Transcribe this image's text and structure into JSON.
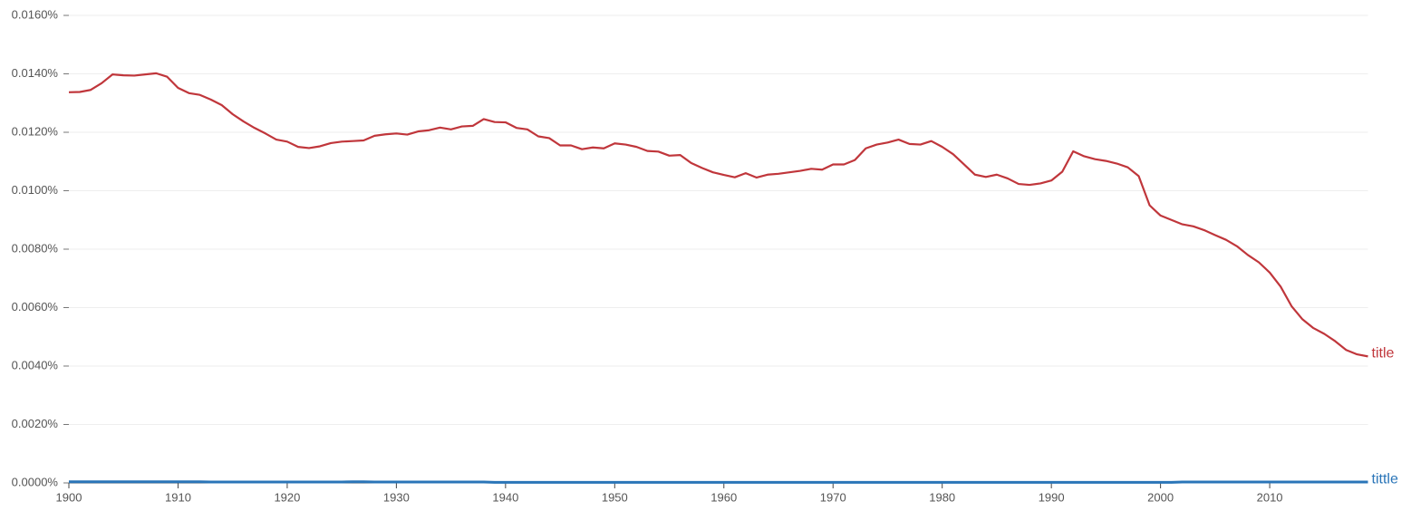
{
  "chart_data": {
    "type": "line",
    "x": [
      1900,
      1901,
      1902,
      1903,
      1904,
      1905,
      1906,
      1907,
      1908,
      1909,
      1910,
      1911,
      1912,
      1913,
      1914,
      1915,
      1916,
      1917,
      1918,
      1919,
      1920,
      1921,
      1922,
      1923,
      1924,
      1925,
      1926,
      1927,
      1928,
      1929,
      1930,
      1931,
      1932,
      1933,
      1934,
      1935,
      1936,
      1937,
      1938,
      1939,
      1940,
      1941,
      1942,
      1943,
      1944,
      1945,
      1946,
      1947,
      1948,
      1949,
      1950,
      1951,
      1952,
      1953,
      1954,
      1955,
      1956,
      1957,
      1958,
      1959,
      1960,
      1961,
      1962,
      1963,
      1964,
      1965,
      1966,
      1967,
      1968,
      1969,
      1970,
      1971,
      1972,
      1973,
      1974,
      1975,
      1976,
      1977,
      1978,
      1979,
      1980,
      1981,
      1982,
      1983,
      1984,
      1985,
      1986,
      1987,
      1988,
      1989,
      1990,
      1991,
      1992,
      1993,
      1994,
      1995,
      1996,
      1997,
      1998,
      1999,
      2000,
      2001,
      2002,
      2003,
      2004,
      2005,
      2006,
      2007,
      2008,
      2009,
      2010,
      2011,
      2012,
      2013,
      2014,
      2015,
      2016,
      2017,
      2018,
      2019
    ],
    "series": [
      {
        "name": "title",
        "color": "#c0363b",
        "values": [
          0.01337,
          0.01338,
          0.01345,
          0.01368,
          0.01398,
          0.01395,
          0.01394,
          0.01398,
          0.01402,
          0.0139,
          0.01352,
          0.01334,
          0.01328,
          0.01312,
          0.01293,
          0.01262,
          0.01237,
          0.01215,
          0.01196,
          0.01175,
          0.01168,
          0.0115,
          0.01146,
          0.01152,
          0.01163,
          0.01168,
          0.0117,
          0.01172,
          0.01188,
          0.01193,
          0.01196,
          0.01192,
          0.01203,
          0.01207,
          0.01216,
          0.0121,
          0.0122,
          0.01222,
          0.01245,
          0.01235,
          0.01234,
          0.01215,
          0.0121,
          0.01186,
          0.0118,
          0.01155,
          0.01155,
          0.01142,
          0.01148,
          0.01145,
          0.01162,
          0.01158,
          0.0115,
          0.01136,
          0.01134,
          0.0112,
          0.01122,
          0.01095,
          0.01078,
          0.01063,
          0.01054,
          0.01046,
          0.0106,
          0.01045,
          0.01055,
          0.01058,
          0.01063,
          0.01068,
          0.01075,
          0.01072,
          0.0109,
          0.0109,
          0.01105,
          0.01145,
          0.01158,
          0.01165,
          0.01175,
          0.0116,
          0.01158,
          0.0117,
          0.0115,
          0.01125,
          0.0109,
          0.01055,
          0.01047,
          0.01055,
          0.01042,
          0.01023,
          0.0102,
          0.01025,
          0.01035,
          0.01065,
          0.01135,
          0.01118,
          0.01108,
          0.01102,
          0.01093,
          0.0108,
          0.0105,
          0.0095,
          0.00915,
          0.009,
          0.00885,
          0.00878,
          0.00865,
          0.00848,
          0.00832,
          0.0081,
          0.0078,
          0.00755,
          0.0072,
          0.00672,
          0.00605,
          0.0056,
          0.0053,
          0.0051,
          0.00485,
          0.00455,
          0.0044,
          0.00433
        ]
      },
      {
        "name": "tittle",
        "color": "#2a75b8",
        "values": [
          4e-05,
          4e-05,
          4e-05,
          4e-05,
          4e-05,
          4e-05,
          4e-05,
          4e-05,
          4e-05,
          4e-05,
          4e-05,
          4e-05,
          4e-05,
          3e-05,
          3e-05,
          3e-05,
          3e-05,
          3e-05,
          3e-05,
          3e-05,
          3e-05,
          3e-05,
          3e-05,
          3e-05,
          3e-05,
          3e-05,
          4e-05,
          4e-05,
          3e-05,
          3e-05,
          3e-05,
          3e-05,
          3e-05,
          3e-05,
          3e-05,
          3e-05,
          3e-05,
          3e-05,
          3e-05,
          2e-05,
          2e-05,
          2e-05,
          2e-05,
          2e-05,
          2e-05,
          2e-05,
          2e-05,
          2e-05,
          2e-05,
          2e-05,
          2e-05,
          2e-05,
          2e-05,
          2e-05,
          2e-05,
          2e-05,
          2e-05,
          2e-05,
          2e-05,
          2e-05,
          2e-05,
          2e-05,
          2e-05,
          2e-05,
          2e-05,
          2e-05,
          2e-05,
          2e-05,
          2e-05,
          2e-05,
          2e-05,
          2e-05,
          2e-05,
          2e-05,
          2e-05,
          2e-05,
          2e-05,
          2e-05,
          2e-05,
          2e-05,
          2e-05,
          2e-05,
          2e-05,
          2e-05,
          2e-05,
          2e-05,
          2e-05,
          2e-05,
          2e-05,
          2e-05,
          2e-05,
          2e-05,
          2e-05,
          2e-05,
          2e-05,
          2e-05,
          2e-05,
          2e-05,
          2e-05,
          2e-05,
          2e-05,
          2e-05,
          3e-05,
          3e-05,
          3e-05,
          3e-05,
          3e-05,
          3e-05,
          3e-05,
          3e-05,
          3e-05,
          3e-05,
          3e-05,
          3e-05,
          3e-05,
          3e-05,
          3e-05,
          3e-05,
          3e-05,
          3e-05
        ]
      }
    ],
    "xlim": [
      1900,
      2019
    ],
    "xticks": [
      1900,
      1910,
      1920,
      1930,
      1940,
      1950,
      1960,
      1970,
      1980,
      1990,
      2000,
      2010
    ],
    "ylim": [
      0,
      0.016
    ],
    "yticks": [
      {
        "value": 0,
        "label": "0.0000%"
      },
      {
        "value": 0.002,
        "label": "0.0020%"
      },
      {
        "value": 0.004,
        "label": "0.0040%"
      },
      {
        "value": 0.006,
        "label": "0.0060%"
      },
      {
        "value": 0.008,
        "label": "0.0080%"
      },
      {
        "value": 0.01,
        "label": "0.0100%"
      },
      {
        "value": 0.012,
        "label": "0.0120%"
      },
      {
        "value": 0.014,
        "label": "0.0140%"
      },
      {
        "value": 0.016,
        "label": "0.0160%"
      }
    ],
    "grid": true
  }
}
